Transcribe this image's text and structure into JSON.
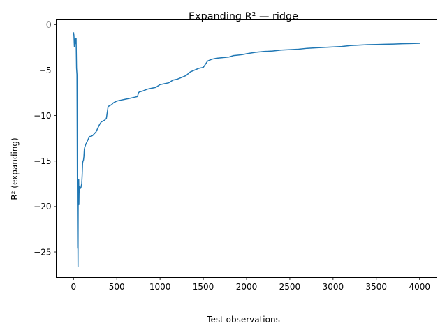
{
  "chart_data": {
    "type": "line",
    "title": "Expanding R² — ridge",
    "xlabel": "Test observations",
    "ylabel": "R² (expanding)",
    "xlim": [
      -200,
      4200
    ],
    "ylim": [
      -27.8,
      0.6
    ],
    "xticks": [
      0,
      500,
      1000,
      1500,
      2000,
      2500,
      3000,
      3500,
      4000
    ],
    "yticks": [
      0,
      -5,
      -10,
      -15,
      -20,
      -25
    ],
    "grid": false,
    "line_color": "#1f77b4",
    "series": [
      {
        "x": [
          1,
          5,
          10,
          15,
          20,
          25,
          30,
          35,
          40,
          45,
          48,
          50,
          52,
          54,
          56,
          58,
          60,
          62,
          64,
          66,
          68,
          70,
          72,
          75,
          78,
          82,
          86,
          90,
          95,
          100,
          105,
          110,
          115,
          120,
          125,
          130,
          140,
          150,
          160,
          170,
          180,
          190,
          200,
          220,
          240,
          260,
          280,
          300,
          320,
          340,
          360,
          380,
          400,
          420,
          440,
          450,
          460,
          480,
          500,
          550,
          600,
          650,
          700,
          740,
          750,
          760,
          800,
          850,
          900,
          950,
          1000,
          1050,
          1100,
          1150,
          1200,
          1250,
          1300,
          1350,
          1400,
          1450,
          1500,
          1550,
          1600,
          1650,
          1700,
          1750,
          1800,
          1850,
          1900,
          1950,
          2000,
          2100,
          2200,
          2300,
          2400,
          2500,
          2600,
          2700,
          2800,
          2900,
          3000,
          3100,
          3200,
          3300,
          3400,
          3500,
          3600,
          3700,
          3800,
          3900,
          4000
        ],
        "y": [
          -0.9,
          -1.2,
          -2.4,
          -1.6,
          -2.1,
          -1.6,
          -1.5,
          -4.8,
          -5.5,
          -19.5,
          -24.6,
          -22.8,
          -26.6,
          -20.0,
          -19.2,
          -18.6,
          -17.0,
          -19.8,
          -18.5,
          -18.2,
          -18.0,
          -17.8,
          -18.1,
          -17.9,
          -18.0,
          -18.0,
          -17.9,
          -17.7,
          -17.5,
          -16.5,
          -15.2,
          -15.0,
          -14.9,
          -14.5,
          -13.7,
          -13.5,
          -13.2,
          -13.0,
          -12.8,
          -12.6,
          -12.4,
          -12.3,
          -12.3,
          -12.2,
          -12.0,
          -11.8,
          -11.4,
          -11.0,
          -10.7,
          -10.6,
          -10.5,
          -10.3,
          -9.0,
          -8.9,
          -8.8,
          -8.7,
          -8.6,
          -8.5,
          -8.4,
          -8.3,
          -8.2,
          -8.1,
          -8.0,
          -7.9,
          -7.5,
          -7.4,
          -7.3,
          -7.1,
          -7.0,
          -6.9,
          -6.6,
          -6.5,
          -6.4,
          -6.1,
          -6.0,
          -5.8,
          -5.6,
          -5.2,
          -5.0,
          -4.8,
          -4.7,
          -4.0,
          -3.8,
          -3.7,
          -3.65,
          -3.6,
          -3.55,
          -3.4,
          -3.35,
          -3.3,
          -3.2,
          -3.05,
          -2.95,
          -2.9,
          -2.8,
          -2.75,
          -2.7,
          -2.6,
          -2.55,
          -2.5,
          -2.45,
          -2.4,
          -2.3,
          -2.25,
          -2.2,
          -2.18,
          -2.15,
          -2.13,
          -2.1,
          -2.08,
          -2.05
        ]
      }
    ]
  }
}
